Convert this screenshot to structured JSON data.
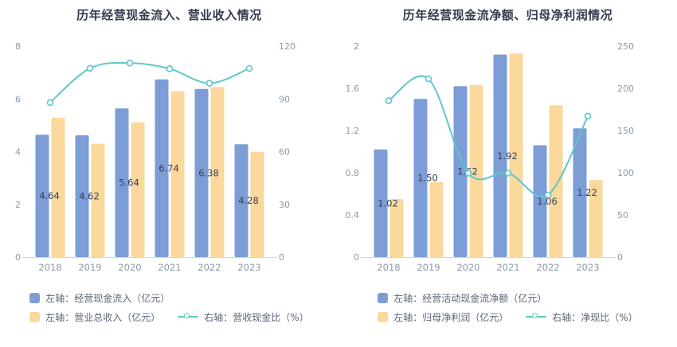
{
  "colors": {
    "blue": "#7C9DD6",
    "orange": "#FBD89B",
    "teal": "#5FC7C9",
    "axis_text": "#8A9AA9",
    "label": "#31405F",
    "title": "#333B4D",
    "axis_line": "#CFD6DD",
    "legend_text": "#5B6576",
    "bg": "#FFFFFF"
  },
  "chart_data": [
    {
      "type": "bar+line",
      "title": "历年经营现金流入、营业收入情况",
      "categories": [
        "2018",
        "2019",
        "2020",
        "2021",
        "2022",
        "2023"
      ],
      "left_axis": {
        "min": 0,
        "max": 8,
        "ticks": [
          0,
          2,
          4,
          6,
          8
        ]
      },
      "right_axis": {
        "min": 0,
        "max": 120,
        "ticks": [
          0,
          30,
          60,
          90,
          120
        ]
      },
      "grid": false,
      "legend_position": "bottom",
      "series": [
        {
          "name": "左轴：经营现金流入（亿元）",
          "type": "bar",
          "axis": "left",
          "color_key": "blue",
          "values": [
            4.64,
            4.62,
            5.64,
            6.74,
            6.38,
            4.28
          ],
          "labels": [
            "4.64",
            "4.62",
            "5.64",
            "6.74",
            "6.38",
            "4.28"
          ]
        },
        {
          "name": "左轴：营业总收入（亿元）",
          "type": "bar",
          "axis": "left",
          "color_key": "orange",
          "values": [
            5.28,
            4.3,
            5.11,
            6.29,
            6.45,
            3.99
          ]
        },
        {
          "name": "右轴：营收现金比（%）",
          "type": "line",
          "axis": "right",
          "color_key": "teal",
          "values": [
            87.9,
            107.4,
            110.4,
            107.2,
            98.9,
            107.3
          ]
        }
      ]
    },
    {
      "type": "bar+line",
      "title": "历年经营现金流净额、归母净利润情况",
      "categories": [
        "2018",
        "2019",
        "2020",
        "2021",
        "2022",
        "2023"
      ],
      "left_axis": {
        "min": 0,
        "max": 2,
        "ticks": [
          0,
          0.4,
          0.8,
          1.2,
          1.6,
          2
        ]
      },
      "right_axis": {
        "min": 0,
        "max": 250,
        "ticks": [
          0,
          50,
          100,
          150,
          200,
          250
        ]
      },
      "grid": false,
      "legend_position": "bottom",
      "series": [
        {
          "name": "左轴：经营活动现金流净额（亿元）",
          "type": "bar",
          "axis": "left",
          "color_key": "blue",
          "values": [
            1.02,
            1.5,
            1.62,
            1.92,
            1.06,
            1.22
          ],
          "labels": [
            "1.02",
            "1.50",
            "1.62",
            "1.92",
            "1.06",
            "1.22"
          ]
        },
        {
          "name": "左轴：归母净利润（亿元）",
          "type": "bar",
          "axis": "left",
          "color_key": "orange",
          "values": [
            0.55,
            0.71,
            1.63,
            1.93,
            1.44,
            0.73
          ]
        },
        {
          "name": "右轴：净现比（%）",
          "type": "line",
          "axis": "right",
          "color_key": "teal",
          "values": [
            185.5,
            211.3,
            99.4,
            99.5,
            73.6,
            167.1
          ]
        }
      ]
    }
  ]
}
